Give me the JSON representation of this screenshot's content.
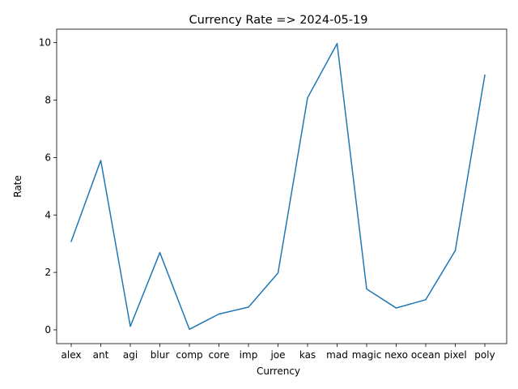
{
  "chart_data": {
    "type": "line",
    "title": "Currency Rate => 2024-05-19",
    "xlabel": "Currency",
    "ylabel": "Rate",
    "categories": [
      "alex",
      "ant",
      "agi",
      "blur",
      "comp",
      "core",
      "imp",
      "joe",
      "kas",
      "mad",
      "magic",
      "nexo",
      "ocean",
      "pixel",
      "poly"
    ],
    "values": [
      3.08,
      5.9,
      0.12,
      2.69,
      0.02,
      0.55,
      0.79,
      1.98,
      8.08,
      9.97,
      1.42,
      0.76,
      1.05,
      2.76,
      8.87
    ],
    "ylim": [
      -0.48,
      10.47
    ],
    "yticks": [
      0,
      2,
      4,
      6,
      8,
      10
    ],
    "grid": false,
    "legend": "none",
    "line_color": "#1f77b4"
  }
}
